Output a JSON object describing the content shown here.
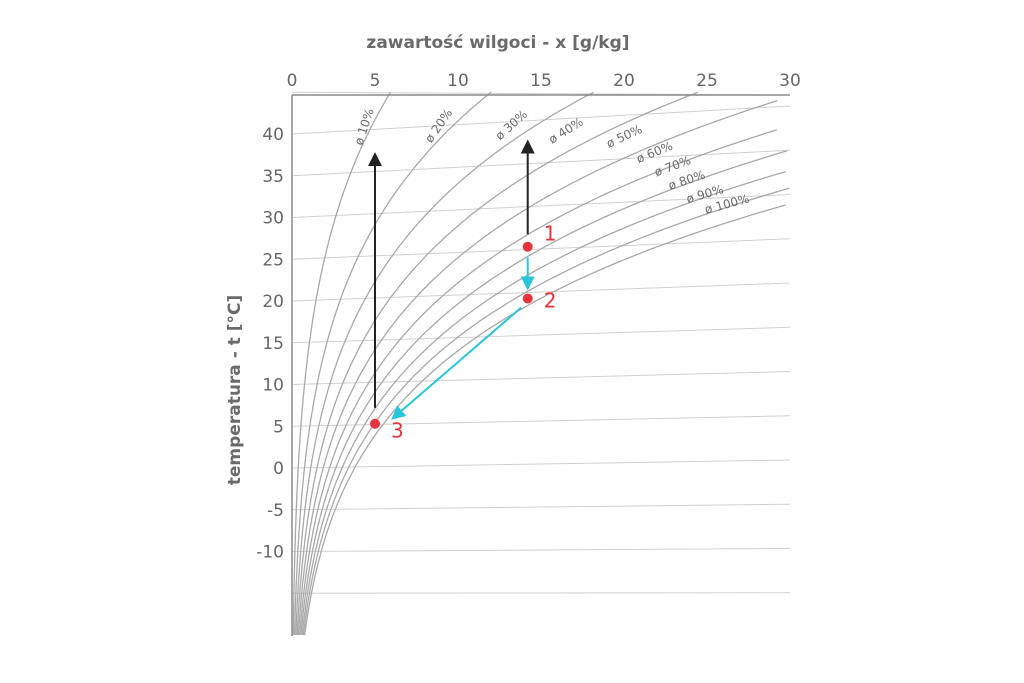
{
  "chart_data": {
    "type": "line",
    "title": "",
    "xlabel": "zawartość wilgoci - x [g/kg]",
    "ylabel": "temperatura - t [°C]",
    "x_ticks": [
      "0",
      "5",
      "10",
      "15",
      "20",
      "25",
      "30"
    ],
    "y_ticks": [
      "40",
      "35",
      "30",
      "25",
      "20",
      "15",
      "10",
      "5",
      "0",
      "-5",
      "-10"
    ],
    "xlim": [
      0,
      30
    ],
    "ylim": [
      -20,
      45
    ],
    "rh_curves": [
      {
        "label": "ø 10%",
        "rh": 0.1
      },
      {
        "label": "ø 20%",
        "rh": 0.2
      },
      {
        "label": "ø 30%",
        "rh": 0.3
      },
      {
        "label": "ø 40%",
        "rh": 0.4
      },
      {
        "label": "ø 50%",
        "rh": 0.5
      },
      {
        "label": "ø 60%",
        "rh": 0.6
      },
      {
        "label": "ø 70%",
        "rh": 0.7
      },
      {
        "label": "ø 80%",
        "rh": 0.8
      },
      {
        "label": "ø 90%",
        "rh": 0.9
      },
      {
        "label": "ø 100%",
        "rh": 1.0
      }
    ],
    "points": [
      {
        "label": "1",
        "x": 14.2,
        "t": 26.5
      },
      {
        "label": "2",
        "x": 14.2,
        "t": 20.3
      },
      {
        "label": "3",
        "x": 5.0,
        "t": 5.3
      }
    ],
    "arrows": [
      {
        "from": [
          14.2,
          28
        ],
        "to": [
          14.2,
          39
        ],
        "color": "#222222"
      },
      {
        "from": [
          14.2,
          25.2
        ],
        "to": [
          14.2,
          21.6
        ],
        "color": "#29c5dc"
      },
      {
        "from": [
          13.8,
          19.2
        ],
        "to": [
          6.1,
          6.0
        ],
        "color": "#29c5dc"
      },
      {
        "from": [
          5.0,
          7.2
        ],
        "to": [
          5.0,
          37.5
        ],
        "color": "#222222"
      }
    ],
    "colors": {
      "curve": "#a8a8a8",
      "grid": "#d0d0d0",
      "point": "#e8323c",
      "cooling_arrow": "#29c5dc",
      "heating_arrow": "#222222"
    }
  }
}
